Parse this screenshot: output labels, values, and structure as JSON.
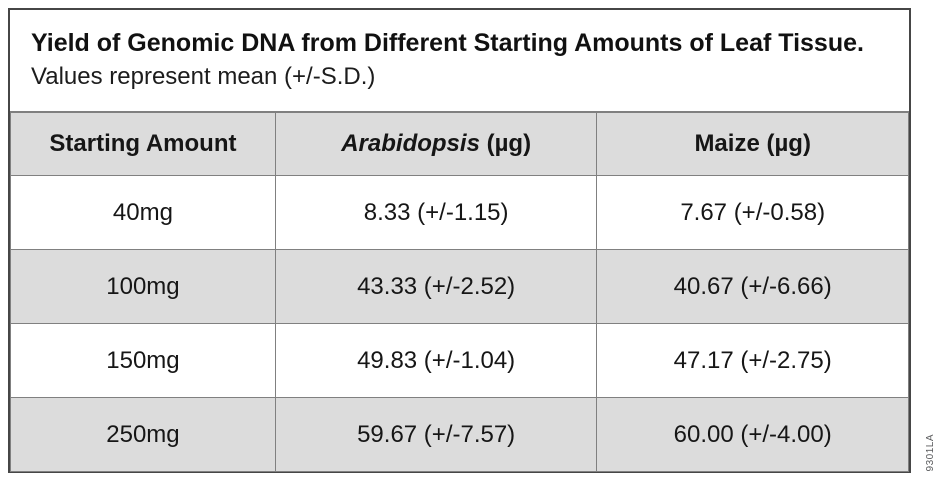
{
  "figure": {
    "title": "Yield of Genomic DNA from Different Starting Amounts of Leaf Tissue.",
    "subtitle": "Values represent mean (+/-S.D.)",
    "figure_code": "9301LA"
  },
  "table": {
    "header": {
      "col1": "Starting Amount",
      "col2_italic": "Arabidopsis",
      "col2_rest": " (µg)",
      "col3": "Maize (µg)"
    },
    "rows": [
      [
        "40mg",
        "8.33 (+/-1.15)",
        "7.67 (+/-0.58)"
      ],
      [
        "100mg",
        "43.33 (+/-2.52)",
        "40.67 (+/-6.66)"
      ],
      [
        "150mg",
        "49.83 (+/-1.04)",
        "47.17 (+/-2.75)"
      ],
      [
        "250mg",
        "59.67 (+/-7.57)",
        "60.00 (+/-4.00)"
      ]
    ]
  },
  "colors": {
    "row_shade": "#dcdcdc",
    "cell_border": "#808080",
    "outer_border": "#464646",
    "text": "#161616",
    "figure_code_text": "#58595b"
  },
  "chart_data": {
    "type": "table",
    "title": "Yield of Genomic DNA from Different Starting Amounts of Leaf Tissue.",
    "subtitle": "Values represent mean (+/-S.D.)",
    "columns": [
      "Starting Amount",
      "Arabidopsis (µg)",
      "Maize (µg)"
    ],
    "categories": [
      "40mg",
      "100mg",
      "150mg",
      "250mg"
    ],
    "series": [
      {
        "name": "Arabidopsis (µg)",
        "mean": [
          8.33,
          43.33,
          49.83,
          59.67
        ],
        "sd": [
          1.15,
          2.52,
          1.04,
          7.57
        ]
      },
      {
        "name": "Maize (µg)",
        "mean": [
          7.67,
          40.67,
          47.17,
          60.0
        ],
        "sd": [
          0.58,
          6.66,
          2.75,
          4.0
        ]
      }
    ],
    "rows": [
      [
        "40mg",
        "8.33 (+/-1.15)",
        "7.67 (+/-0.58)"
      ],
      [
        "100mg",
        "43.33 (+/-2.52)",
        "40.67 (+/-6.66)"
      ],
      [
        "150mg",
        "49.83 (+/-1.04)",
        "47.17 (+/-2.75)"
      ],
      [
        "250mg",
        "59.67 (+/-7.57)",
        "60.00 (+/-4.00)"
      ]
    ]
  }
}
